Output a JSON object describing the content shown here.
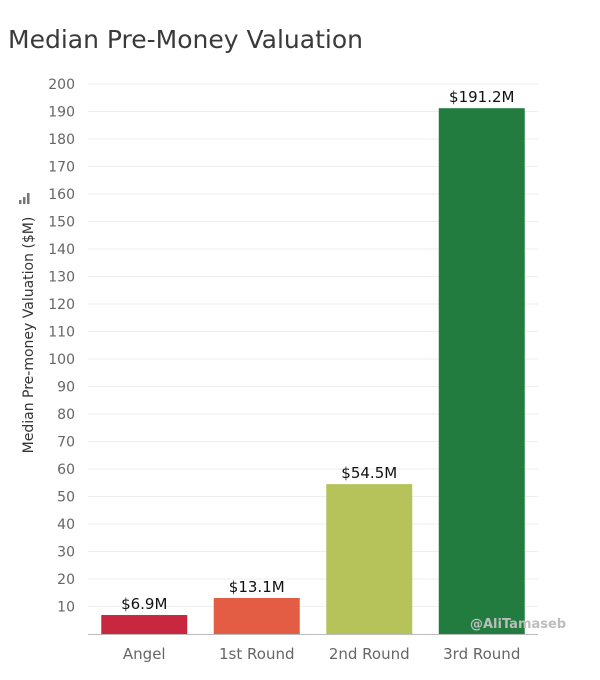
{
  "chart_data": {
    "type": "bar",
    "title": "Median Pre-Money Valuation",
    "xlabel": "",
    "ylabel": "Median Pre-money Valuation ($M)",
    "ylim": [
      0,
      200
    ],
    "yticks": [
      10,
      20,
      30,
      40,
      50,
      60,
      70,
      80,
      90,
      100,
      110,
      120,
      130,
      140,
      150,
      160,
      170,
      180,
      190,
      200
    ],
    "grid": true,
    "categories": [
      "Angel",
      "1st Round",
      "2nd Round",
      "3rd Round"
    ],
    "values": [
      6.9,
      13.1,
      54.5,
      191.2
    ],
    "data_labels": [
      "$6.9M",
      "$13.1M",
      "$54.5M",
      "$191.2M"
    ],
    "colors": [
      "#c8283f",
      "#e35d45",
      "#b6c35a",
      "#227c3f"
    ],
    "grid_color": "#eeeeee",
    "baseline_color": "#bbbbbb",
    "ylabel_icon": "bar-chart-icon"
  },
  "watermark": "@AliTamaseb"
}
